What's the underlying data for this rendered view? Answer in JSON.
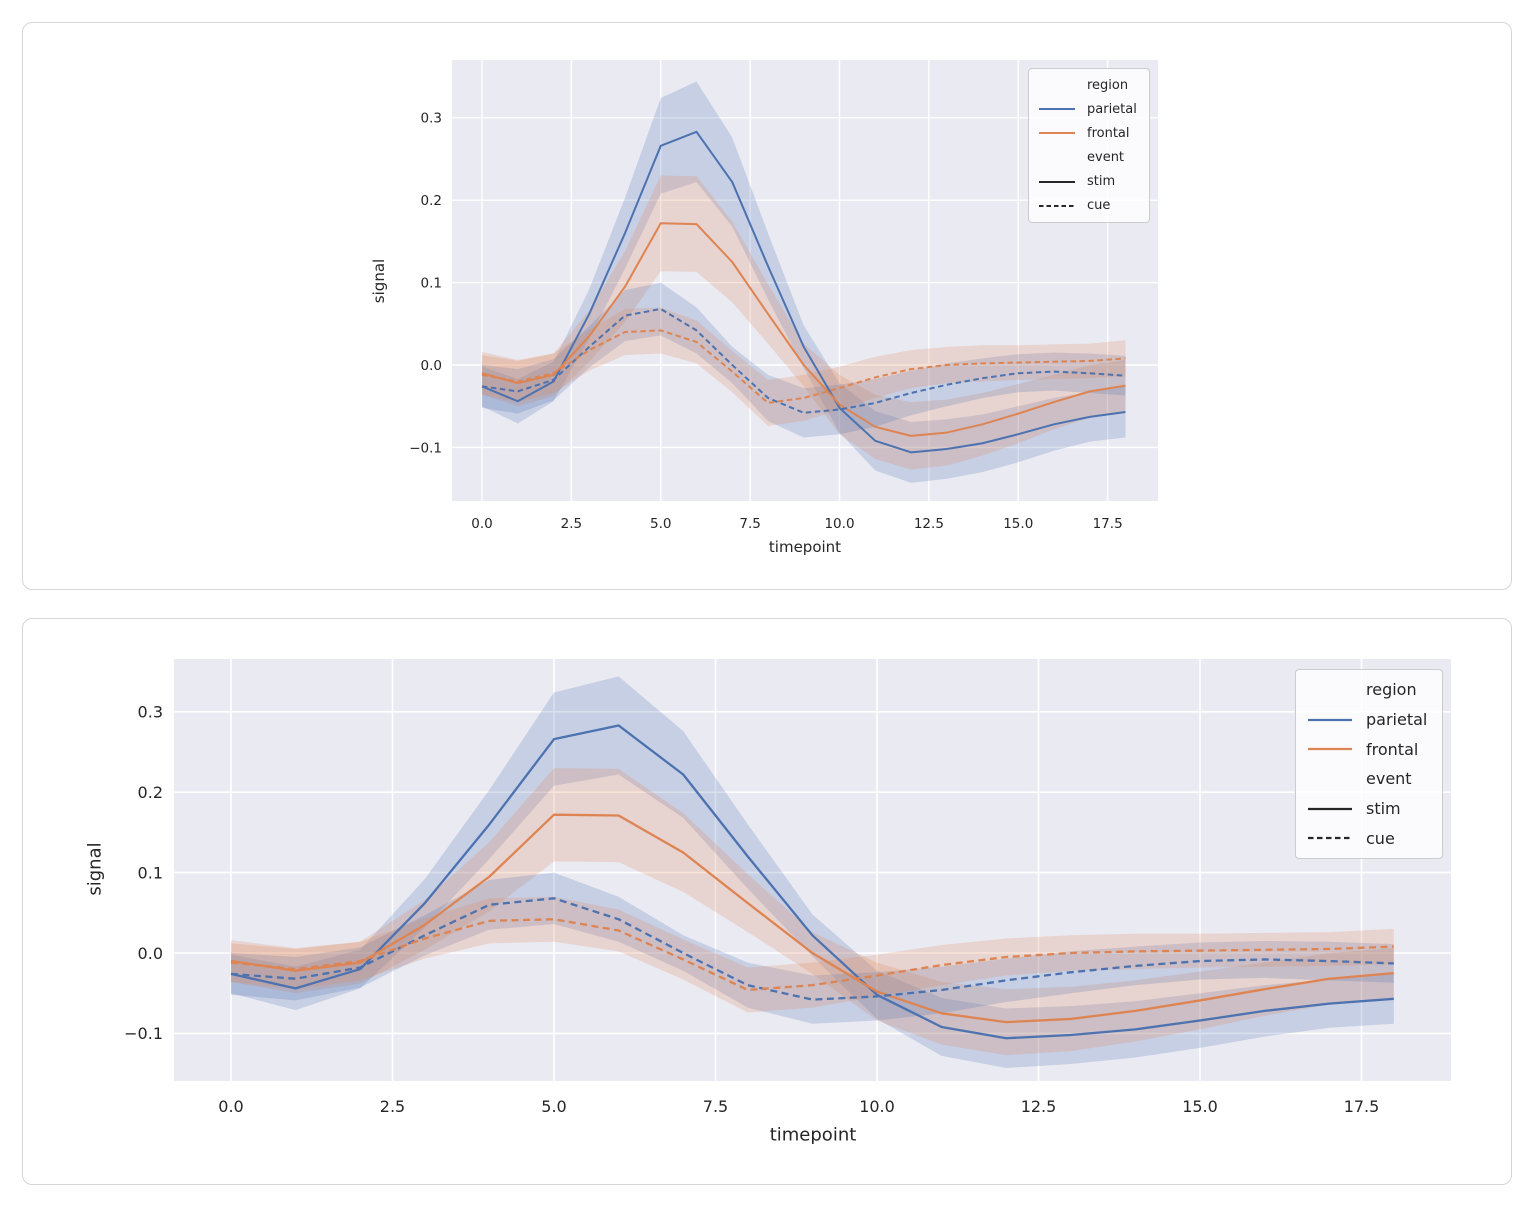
{
  "colors": {
    "parietal": "#4C72B0",
    "frontal": "#DD8452",
    "legend_line": "#262626",
    "plot_background": "#EAEAF2",
    "gridline": "#FFFFFF",
    "text": "#262626",
    "card_border": "#D6D6D6",
    "legend_border": "#CCCCCC"
  },
  "chart_data": {
    "type": "line",
    "title": "",
    "xlabel": "timepoint",
    "ylabel": "signal",
    "grid": true,
    "panels": [
      {
        "id": "top",
        "note": "same data as bottom, smaller panel",
        "legend_position": "upper right"
      },
      {
        "id": "bottom",
        "note": "same data as top, larger panel",
        "legend_position": "upper right"
      }
    ],
    "x": [
      0,
      1,
      2,
      3,
      4,
      5,
      6,
      7,
      8,
      9,
      10,
      11,
      12,
      13,
      14,
      15,
      16,
      17,
      18
    ],
    "xticks": [
      0,
      2.5,
      5,
      7.5,
      10,
      12.5,
      15,
      17.5
    ],
    "xtick_labels": [
      "0.0",
      "2.5",
      "5.0",
      "7.5",
      "10.0",
      "12.5",
      "15.0",
      "17.5"
    ],
    "yticks": [
      0.3,
      0.2,
      0.1,
      0.0,
      -0.1
    ],
    "ytick_labels": [
      "0.3",
      "0.2",
      "0.1",
      "0.0",
      "−0.1"
    ],
    "xlim": [
      -0.85,
      18.9
    ],
    "ylim": [
      -0.16,
      0.37
    ],
    "legend": {
      "entries": [
        {
          "label": "region",
          "handle": "none"
        },
        {
          "label": "parietal",
          "handle": "solid",
          "color": "#4C72B0"
        },
        {
          "label": "frontal",
          "handle": "solid",
          "color": "#DD8452"
        },
        {
          "label": "event",
          "handle": "none"
        },
        {
          "label": "stim",
          "handle": "solid",
          "color": "#262626"
        },
        {
          "label": "cue",
          "handle": "dashed",
          "color": "#262626"
        }
      ]
    },
    "series": [
      {
        "name": "parietal-stim",
        "region": "parietal",
        "event": "stim",
        "color": "#4C72B0",
        "style": "solid",
        "values": [
          -0.026,
          -0.044,
          -0.02,
          0.062,
          0.16,
          0.266,
          0.283,
          0.222,
          0.12,
          0.022,
          -0.052,
          -0.092,
          -0.106,
          -0.102,
          -0.095,
          -0.084,
          -0.072,
          -0.063,
          -0.057
        ],
        "ci_lo": [
          -0.05,
          -0.071,
          -0.044,
          0.032,
          0.117,
          0.208,
          0.222,
          0.168,
          0.08,
          -0.004,
          -0.082,
          -0.128,
          -0.143,
          -0.138,
          -0.13,
          -0.118,
          -0.104,
          -0.093,
          -0.088
        ],
        "ci_hi": [
          -0.002,
          -0.017,
          0.004,
          0.092,
          0.203,
          0.324,
          0.344,
          0.276,
          0.16,
          0.048,
          -0.022,
          -0.056,
          -0.069,
          -0.066,
          -0.06,
          -0.05,
          -0.04,
          -0.033,
          -0.026
        ]
      },
      {
        "name": "frontal-stim",
        "region": "frontal",
        "event": "stim",
        "color": "#DD8452",
        "style": "solid",
        "values": [
          -0.01,
          -0.022,
          -0.012,
          0.035,
          0.095,
          0.172,
          0.171,
          0.125,
          0.062,
          0.0,
          -0.048,
          -0.075,
          -0.086,
          -0.082,
          -0.072,
          -0.059,
          -0.045,
          -0.032,
          -0.025
        ],
        "ci_lo": [
          -0.036,
          -0.05,
          -0.038,
          0.004,
          0.052,
          0.114,
          0.113,
          0.076,
          0.026,
          -0.026,
          -0.084,
          -0.114,
          -0.127,
          -0.122,
          -0.11,
          -0.095,
          -0.078,
          -0.064,
          -0.056
        ],
        "ci_hi": [
          0.016,
          0.006,
          0.014,
          0.066,
          0.138,
          0.23,
          0.229,
          0.174,
          0.098,
          0.026,
          -0.012,
          -0.036,
          -0.045,
          -0.042,
          -0.034,
          -0.023,
          -0.012,
          0.0,
          0.006
        ]
      },
      {
        "name": "parietal-cue",
        "region": "parietal",
        "event": "cue",
        "color": "#4C72B0",
        "style": "dashed",
        "values": [
          -0.026,
          -0.032,
          -0.018,
          0.022,
          0.06,
          0.068,
          0.042,
          0.0,
          -0.04,
          -0.058,
          -0.054,
          -0.046,
          -0.034,
          -0.024,
          -0.016,
          -0.01,
          -0.008,
          -0.01,
          -0.013
        ],
        "ci_lo": [
          -0.052,
          -0.059,
          -0.043,
          -0.003,
          0.029,
          0.036,
          0.014,
          -0.022,
          -0.068,
          -0.088,
          -0.084,
          -0.075,
          -0.061,
          -0.05,
          -0.04,
          -0.033,
          -0.031,
          -0.034,
          -0.037
        ],
        "ci_hi": [
          0.0,
          -0.005,
          0.007,
          0.047,
          0.091,
          0.1,
          0.07,
          0.022,
          -0.012,
          -0.028,
          -0.024,
          -0.017,
          -0.007,
          0.002,
          0.008,
          0.013,
          0.015,
          0.014,
          0.011
        ]
      },
      {
        "name": "frontal-cue",
        "region": "frontal",
        "event": "cue",
        "color": "#DD8452",
        "style": "dashed",
        "values": [
          -0.012,
          -0.02,
          -0.01,
          0.018,
          0.04,
          0.042,
          0.028,
          -0.008,
          -0.046,
          -0.04,
          -0.028,
          -0.015,
          -0.005,
          0.0,
          0.002,
          0.003,
          0.004,
          0.005,
          0.008
        ],
        "ci_lo": [
          -0.036,
          -0.045,
          -0.034,
          -0.007,
          0.012,
          0.014,
          0.002,
          -0.033,
          -0.074,
          -0.068,
          -0.054,
          -0.04,
          -0.028,
          -0.022,
          -0.02,
          -0.018,
          -0.017,
          -0.016,
          -0.014
        ],
        "ci_hi": [
          0.012,
          0.005,
          0.014,
          0.043,
          0.068,
          0.07,
          0.054,
          0.017,
          -0.018,
          -0.012,
          -0.002,
          0.01,
          0.018,
          0.022,
          0.024,
          0.024,
          0.025,
          0.026,
          0.03
        ]
      }
    ]
  }
}
